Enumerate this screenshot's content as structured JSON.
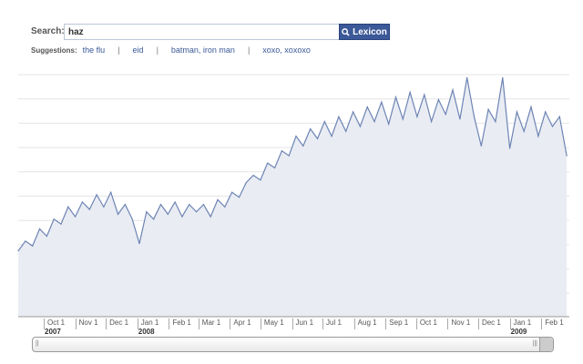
{
  "search": {
    "label": "Search:",
    "value": "haz",
    "button_label": "Lexicon",
    "button_icon": "search-icon"
  },
  "suggestions": {
    "label": "Suggestions:",
    "items": [
      "the flu",
      "eid",
      "batman, iron man",
      "xoxo, xoxoxo"
    ]
  },
  "colors": {
    "line": "#6d84b4",
    "fill": "#e9ecf3",
    "button": "#3b5998",
    "grid": "#e4e4e4"
  },
  "chart_data": {
    "type": "area",
    "grid": true,
    "x_ticks": [
      {
        "date": "2007-10-01",
        "label": "Oct 1"
      },
      {
        "date": "2007-11-01",
        "label": "Nov 1"
      },
      {
        "date": "2007-12-01",
        "label": "Dec 1"
      },
      {
        "date": "2008-01-01",
        "label": "Jan 1"
      },
      {
        "date": "2008-02-01",
        "label": "Feb 1"
      },
      {
        "date": "2008-03-01",
        "label": "Mar 1"
      },
      {
        "date": "2008-04-01",
        "label": "Apr 1"
      },
      {
        "date": "2008-05-01",
        "label": "May 1"
      },
      {
        "date": "2008-06-01",
        "label": "Jun 1"
      },
      {
        "date": "2008-07-01",
        "label": "Jul 1"
      },
      {
        "date": "2008-08-01",
        "label": "Aug 1"
      },
      {
        "date": "2008-09-01",
        "label": "Sep 1"
      },
      {
        "date": "2008-10-01",
        "label": "Oct 1"
      },
      {
        "date": "2008-11-01",
        "label": "Nov 1"
      },
      {
        "date": "2008-12-01",
        "label": "Dec 1"
      },
      {
        "date": "2009-01-01",
        "label": "Jan 1"
      },
      {
        "date": "2009-02-01",
        "label": "Feb 1"
      }
    ],
    "year_labels": [
      {
        "date": "2007-10-01",
        "label": "2007"
      },
      {
        "date": "2008-01-01",
        "label": "2008"
      },
      {
        "date": "2009-01-01",
        "label": "2009"
      }
    ],
    "ylim": [
      0,
      100
    ],
    "points": [
      [
        "2007-09-06",
        27
      ],
      [
        "2007-09-13",
        31
      ],
      [
        "2007-09-20",
        29
      ],
      [
        "2007-09-27",
        36
      ],
      [
        "2007-10-04",
        33
      ],
      [
        "2007-10-11",
        40
      ],
      [
        "2007-10-18",
        38
      ],
      [
        "2007-10-25",
        45
      ],
      [
        "2007-11-01",
        41
      ],
      [
        "2007-11-08",
        47
      ],
      [
        "2007-11-15",
        44
      ],
      [
        "2007-11-22",
        50
      ],
      [
        "2007-11-29",
        45
      ],
      [
        "2007-12-06",
        51
      ],
      [
        "2007-12-13",
        42
      ],
      [
        "2007-12-20",
        46
      ],
      [
        "2007-12-27",
        40
      ],
      [
        "2008-01-03",
        30
      ],
      [
        "2008-01-10",
        43
      ],
      [
        "2008-01-17",
        40
      ],
      [
        "2008-01-24",
        46
      ],
      [
        "2008-01-31",
        42
      ],
      [
        "2008-02-07",
        47
      ],
      [
        "2008-02-14",
        41
      ],
      [
        "2008-02-21",
        46
      ],
      [
        "2008-02-28",
        43
      ],
      [
        "2008-03-06",
        46
      ],
      [
        "2008-03-13",
        41
      ],
      [
        "2008-03-20",
        48
      ],
      [
        "2008-03-27",
        45
      ],
      [
        "2008-04-03",
        51
      ],
      [
        "2008-04-10",
        49
      ],
      [
        "2008-04-17",
        55
      ],
      [
        "2008-04-24",
        58
      ],
      [
        "2008-05-01",
        56
      ],
      [
        "2008-05-08",
        63
      ],
      [
        "2008-05-15",
        61
      ],
      [
        "2008-05-22",
        68
      ],
      [
        "2008-05-29",
        66
      ],
      [
        "2008-06-05",
        74
      ],
      [
        "2008-06-12",
        70
      ],
      [
        "2008-06-19",
        77
      ],
      [
        "2008-06-26",
        73
      ],
      [
        "2008-07-03",
        80
      ],
      [
        "2008-07-10",
        74
      ],
      [
        "2008-07-17",
        82
      ],
      [
        "2008-07-24",
        76
      ],
      [
        "2008-07-31",
        84
      ],
      [
        "2008-08-07",
        78
      ],
      [
        "2008-08-14",
        86
      ],
      [
        "2008-08-21",
        80
      ],
      [
        "2008-08-28",
        88
      ],
      [
        "2008-09-04",
        79
      ],
      [
        "2008-09-11",
        90
      ],
      [
        "2008-09-18",
        81
      ],
      [
        "2008-09-25",
        92
      ],
      [
        "2008-10-02",
        82
      ],
      [
        "2008-10-09",
        91
      ],
      [
        "2008-10-16",
        80
      ],
      [
        "2008-10-23",
        89
      ],
      [
        "2008-10-30",
        83
      ],
      [
        "2008-11-06",
        93
      ],
      [
        "2008-11-13",
        81
      ],
      [
        "2008-11-20",
        98
      ],
      [
        "2008-11-27",
        82
      ],
      [
        "2008-12-04",
        70
      ],
      [
        "2008-12-11",
        85
      ],
      [
        "2008-12-18",
        80
      ],
      [
        "2008-12-25",
        98
      ],
      [
        "2009-01-01",
        69
      ],
      [
        "2009-01-08",
        84
      ],
      [
        "2009-01-15",
        76
      ],
      [
        "2009-01-22",
        86
      ],
      [
        "2009-01-29",
        74
      ],
      [
        "2009-02-05",
        84
      ],
      [
        "2009-02-12",
        78
      ],
      [
        "2009-02-19",
        82
      ],
      [
        "2009-02-26",
        66
      ]
    ]
  }
}
